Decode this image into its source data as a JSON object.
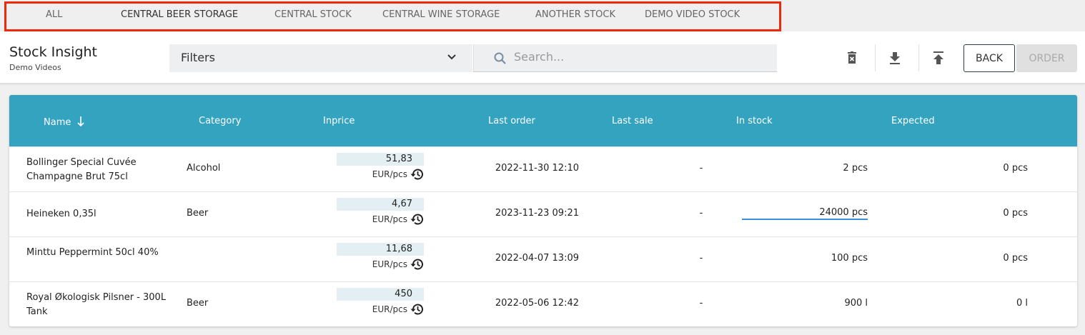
{
  "tabs": [
    {
      "label": "ALL"
    },
    {
      "label": "CENTRAL BEER STORAGE",
      "active": true
    },
    {
      "label": "CENTRAL STOCK"
    },
    {
      "label": "CENTRAL WINE STORAGE"
    },
    {
      "label": "ANOTHER STOCK"
    },
    {
      "label": "DEMO VIDEO STOCK"
    }
  ],
  "highlight_color": "#f0280a",
  "header": {
    "title": "Stock Insight",
    "subtitle": "Demo Videos",
    "filters_label": "Filters",
    "search_placeholder": "Search...",
    "back_label": "BACK",
    "order_label": "ORDER",
    "icons": [
      "delete-icon",
      "download-icon",
      "upload-icon"
    ]
  },
  "table": {
    "header_color": "#33a3c0",
    "columns": [
      "Name",
      "Category",
      "Inprice",
      "Last order",
      "Last sale",
      "In stock",
      "Expected"
    ],
    "sort": {
      "column": "Name",
      "direction": "descending"
    },
    "rows": [
      {
        "name": "Bollinger Special Cuvée Champagne Brut 75cl",
        "category": "Alcohol",
        "inprice": "51,83",
        "unit": "EUR/pcs",
        "last_order": "2022-11-30 12:10",
        "last_sale": "-",
        "in_stock": "2 pcs",
        "expected": "0 pcs"
      },
      {
        "name": "Heineken 0,35l",
        "category": "Beer",
        "inprice": "4,67",
        "unit": "EUR/pcs",
        "last_order": "2023-11-23 09:21",
        "last_sale": "-",
        "in_stock": "24000 pcs",
        "expected": "0 pcs"
      },
      {
        "name": "Minttu Peppermint 50cl 40%",
        "category": "",
        "inprice": "11,68",
        "unit": "EUR/pcs",
        "last_order": "2022-04-07 13:09",
        "last_sale": "-",
        "in_stock": "100 pcs",
        "expected": "0 pcs"
      },
      {
        "name": "Royal Økologisk Pilsner - 300L Tank",
        "category": "Beer",
        "inprice": "450",
        "unit": "EUR/pcs",
        "last_order": "2022-05-06 12:42",
        "last_sale": "-",
        "in_stock": "900 l",
        "expected": "0 l"
      }
    ]
  }
}
